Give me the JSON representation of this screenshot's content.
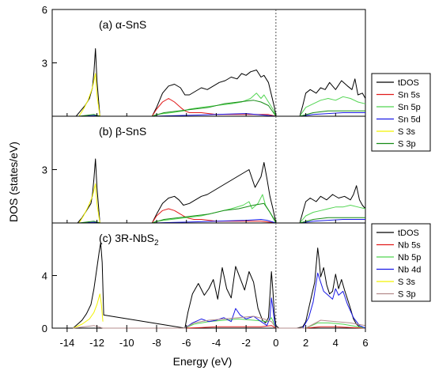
{
  "ylabel": "DOS (states/eV)",
  "xlabel": "Energy (eV)",
  "colors": {
    "tDOS": "#000000",
    "red": "#e11b1b",
    "lime": "#52d552",
    "blue": "#1a1ae6",
    "yellow": "#f2f200",
    "green": "#168c16",
    "brown": "#b48c8c",
    "fermi": "#555555"
  },
  "chart_data": [
    {
      "type": "line",
      "panel": "(a)",
      "title": "(a) α-SnS",
      "xlim": [
        -15,
        6
      ],
      "ylim": [
        0,
        6
      ],
      "yticks": [
        3,
        6
      ],
      "legend": {
        "placement": "right",
        "entries": [
          {
            "label": "tDOS",
            "color": "#000000"
          },
          {
            "label": "Sn 5s",
            "color": "#e11b1b"
          },
          {
            "label": "Sn 5p",
            "color": "#52d552"
          },
          {
            "label": "Sn 5d",
            "color": "#1a1ae6"
          },
          {
            "label": "S 3s",
            "color": "#f2f200"
          },
          {
            "label": "S 3p",
            "color": "#168c16"
          }
        ]
      },
      "series": [
        {
          "name": "tDOS",
          "color": "#000000",
          "x": [
            -13.4,
            -13.1,
            -12.8,
            -12.5,
            -12.3,
            -12.2,
            -12.1,
            -12.0,
            -11.85,
            -11.8,
            -8.3,
            -8.0,
            -7.6,
            -7.2,
            -6.8,
            -6.4,
            -6.1,
            -5.8,
            -5.4,
            -5.0,
            -4.6,
            -4.2,
            -3.8,
            -3.4,
            -3.0,
            -2.6,
            -2.3,
            -2.0,
            -1.7,
            -1.3,
            -1.0,
            -0.8,
            -0.5,
            -0.3,
            -0.1,
            0.0,
            1.6,
            1.8,
            2.0,
            2.3,
            2.7,
            3.0,
            3.3,
            3.6,
            4.0,
            4.4,
            4.8,
            5.1,
            5.3,
            5.5,
            5.8,
            6.0
          ],
          "y": [
            0,
            0.3,
            0.6,
            1.0,
            1.6,
            2.5,
            3.8,
            2.0,
            0.5,
            0,
            0,
            0.5,
            1.3,
            1.7,
            1.8,
            1.6,
            1.2,
            1.2,
            1.4,
            1.6,
            1.5,
            1.7,
            1.9,
            2.0,
            2.2,
            2.1,
            2.4,
            2.3,
            2.5,
            2.6,
            2.2,
            2.3,
            1.9,
            1.2,
            0.5,
            0,
            0,
            0.6,
            1.3,
            1.5,
            1.3,
            1.6,
            1.5,
            1.9,
            1.5,
            2.0,
            1.7,
            1.5,
            2.1,
            1.2,
            1.3,
            1.0
          ]
        },
        {
          "name": "Sn 5s",
          "color": "#e11b1b",
          "x": [
            -8.3,
            -8.0,
            -7.6,
            -7.2,
            -6.8,
            -6.4,
            -6.1,
            -5.8,
            -5.4,
            -5.0,
            -4.0,
            -3.0,
            -2.0,
            -1.0,
            -0.5,
            0.0
          ],
          "y": [
            0,
            0.4,
            0.8,
            1.0,
            0.8,
            0.5,
            0.3,
            0.2,
            0.2,
            0.2,
            0.1,
            0.1,
            0.1,
            0.1,
            0.1,
            0
          ]
        },
        {
          "name": "Sn 5p",
          "color": "#52d552",
          "x": [
            -8.3,
            -8.0,
            -7.0,
            -6.2,
            -5.8,
            -5.0,
            -4.0,
            -3.0,
            -2.3,
            -2.0,
            -1.7,
            -1.3,
            -1.0,
            -0.8,
            -0.5,
            -0.2,
            0.0,
            1.6,
            2.0,
            2.5,
            3.0,
            3.5,
            4.0,
            4.5,
            5.0,
            5.5,
            6.0
          ],
          "y": [
            0,
            0.1,
            0.2,
            0.3,
            0.4,
            0.5,
            0.6,
            0.7,
            0.8,
            0.9,
            1.0,
            1.3,
            1.0,
            1.2,
            0.8,
            0.4,
            0,
            0,
            0.5,
            0.7,
            0.9,
            1.0,
            0.9,
            1.1,
            1.0,
            0.8,
            0.7
          ]
        },
        {
          "name": "Sn 5d",
          "color": "#1a1ae6",
          "x": [
            -13.0,
            -12.0,
            -11.8,
            -8.3,
            -6.0,
            -4.0,
            -2.0,
            0.0,
            1.6,
            2.5,
            3.5,
            4.5,
            6.0
          ],
          "y": [
            0,
            0.05,
            0,
            0,
            0.05,
            0.1,
            0.15,
            0,
            0,
            0.1,
            0.15,
            0.2,
            0.2
          ]
        },
        {
          "name": "S 3s",
          "color": "#f2f200",
          "x": [
            -13.2,
            -12.9,
            -12.6,
            -12.3,
            -12.1,
            -12.0,
            -11.8
          ],
          "y": [
            0,
            0.4,
            0.9,
            1.6,
            2.4,
            1.2,
            0
          ]
        },
        {
          "name": "S 3p",
          "color": "#168c16",
          "x": [
            -13.2,
            -12.2,
            -11.8,
            -8.3,
            -7.5,
            -6.5,
            -5.5,
            -4.5,
            -3.5,
            -2.5,
            -1.5,
            -1.0,
            -0.5,
            0.0,
            1.6,
            2.5,
            3.5,
            4.5,
            6.0
          ],
          "y": [
            0,
            0.1,
            0,
            0,
            0.2,
            0.3,
            0.4,
            0.5,
            0.7,
            0.8,
            0.9,
            0.8,
            0.6,
            0,
            0,
            0.2,
            0.3,
            0.3,
            0.3
          ]
        }
      ]
    },
    {
      "type": "line",
      "panel": "(b)",
      "title": "(b) β-SnS",
      "xlim": [
        -15,
        6
      ],
      "ylim": [
        0,
        6
      ],
      "yticks": [
        3
      ],
      "series": [
        {
          "name": "tDOS",
          "color": "#000000",
          "x": [
            -13.3,
            -13.0,
            -12.7,
            -12.4,
            -12.3,
            -12.2,
            -12.1,
            -12.0,
            -11.85,
            -11.8,
            -8.3,
            -8.0,
            -7.6,
            -7.2,
            -6.8,
            -6.5,
            -6.2,
            -5.8,
            -5.4,
            -5.0,
            -4.6,
            -4.2,
            -3.8,
            -3.4,
            -3.0,
            -2.6,
            -2.2,
            -1.8,
            -1.4,
            -1.0,
            -0.8,
            -0.6,
            -0.4,
            -0.2,
            -0.1,
            0.0,
            1.6,
            1.8,
            2.0,
            2.3,
            2.7,
            3.0,
            3.4,
            3.8,
            4.2,
            4.6,
            5.0,
            5.2,
            5.4,
            5.6,
            5.8,
            6.0
          ],
          "y": [
            0,
            0.3,
            0.7,
            1.1,
            1.6,
            2.5,
            3.6,
            2.0,
            0.5,
            0,
            0,
            0.5,
            1.1,
            1.4,
            1.5,
            1.3,
            1.0,
            1.1,
            1.3,
            1.5,
            1.6,
            1.8,
            2.0,
            2.2,
            2.4,
            2.6,
            2.8,
            3.0,
            2.0,
            2.6,
            3.4,
            2.5,
            1.5,
            0.8,
            0.4,
            0,
            0,
            0.6,
            1.2,
            1.4,
            1.2,
            1.5,
            1.3,
            1.6,
            1.4,
            1.5,
            1.3,
            1.6,
            2.1,
            1.3,
            1.0,
            0.8
          ]
        },
        {
          "name": "Sn 5s",
          "color": "#e11b1b",
          "x": [
            -8.3,
            -8.0,
            -7.6,
            -7.2,
            -6.8,
            -6.4,
            -6.0,
            -5.5,
            -5.0,
            -4.0,
            -3.0,
            -2.0,
            -1.0,
            0.0
          ],
          "y": [
            0,
            0.4,
            0.7,
            0.8,
            0.7,
            0.5,
            0.3,
            0.2,
            0.2,
            0.1,
            0.1,
            0.1,
            0.1,
            0
          ]
        },
        {
          "name": "Sn 5p",
          "color": "#52d552",
          "x": [
            -8.3,
            -8.0,
            -7.0,
            -6.0,
            -5.0,
            -4.0,
            -3.0,
            -2.2,
            -1.8,
            -1.6,
            -1.2,
            -0.9,
            -0.7,
            -0.4,
            -0.1,
            0.0,
            1.6,
            2.0,
            2.5,
            3.0,
            3.5,
            4.0,
            4.5,
            5.0,
            5.5,
            6.0
          ],
          "y": [
            0,
            0.1,
            0.2,
            0.3,
            0.4,
            0.6,
            0.8,
            1.0,
            1.2,
            0.8,
            1.1,
            1.6,
            1.0,
            0.6,
            0.2,
            0,
            0,
            0.4,
            0.6,
            0.7,
            0.8,
            0.9,
            0.9,
            1.0,
            0.9,
            0.8
          ]
        },
        {
          "name": "Sn 5d",
          "color": "#1a1ae6",
          "x": [
            -13.0,
            -12.0,
            -11.8,
            -8.3,
            -6.0,
            -4.0,
            -2.0,
            -1.0,
            -0.6,
            0.0,
            1.6,
            2.5,
            3.5,
            4.5,
            6.0
          ],
          "y": [
            0,
            0.05,
            0,
            0,
            0.05,
            0.1,
            0.15,
            0.2,
            0.15,
            0,
            0,
            0.1,
            0.15,
            0.2,
            0.2
          ]
        },
        {
          "name": "S 3s",
          "color": "#f2f200",
          "x": [
            -13.2,
            -12.9,
            -12.6,
            -12.3,
            -12.1,
            -12.0,
            -11.8
          ],
          "y": [
            0,
            0.4,
            0.9,
            1.5,
            2.2,
            1.1,
            0
          ]
        },
        {
          "name": "S 3p",
          "color": "#168c16",
          "x": [
            -13.2,
            -12.2,
            -11.8,
            -8.3,
            -7.5,
            -6.5,
            -5.5,
            -4.5,
            -3.5,
            -2.5,
            -1.5,
            -0.8,
            -0.4,
            0.0,
            1.6,
            2.5,
            3.5,
            4.5,
            6.0
          ],
          "y": [
            0,
            0.1,
            0,
            0,
            0.2,
            0.3,
            0.4,
            0.5,
            0.7,
            0.8,
            1.0,
            1.1,
            0.6,
            0,
            0,
            0.2,
            0.3,
            0.3,
            0.3
          ]
        }
      ]
    },
    {
      "type": "line",
      "panel": "(c)",
      "title": "(c) 3R-NbS",
      "title_sub": "2",
      "xlim": [
        -15,
        6
      ],
      "ylim": [
        0,
        8
      ],
      "yticks": [
        0,
        4
      ],
      "legend": {
        "placement": "right",
        "entries": [
          {
            "label": "tDOS",
            "color": "#000000"
          },
          {
            "label": "Nb 5s",
            "color": "#e11b1b"
          },
          {
            "label": "Nb 5p",
            "color": "#52d552"
          },
          {
            "label": "Nb 4d",
            "color": "#1a1ae6"
          },
          {
            "label": "S 3s",
            "color": "#f2f200"
          },
          {
            "label": "S 3p",
            "color": "#b48c8c"
          }
        ]
      },
      "series": [
        {
          "name": "tDOS",
          "color": "#000000",
          "x": [
            -13.6,
            -13.3,
            -13.0,
            -12.7,
            -12.4,
            -12.2,
            -12.0,
            -11.85,
            -11.75,
            -11.65,
            -11.55,
            -6.1,
            -5.9,
            -5.6,
            -5.2,
            -4.8,
            -4.5,
            -4.2,
            -3.9,
            -3.6,
            -3.3,
            -3.0,
            -2.7,
            -2.4,
            -2.1,
            -1.8,
            -1.5,
            -1.2,
            -0.9,
            -0.7,
            -0.5,
            -0.4,
            -0.3,
            -0.2,
            -0.1,
            0.0,
            0.2,
            0.4,
            0.6,
            1.0,
            1.4,
            1.8,
            2.0,
            2.2,
            2.4,
            2.6,
            2.8,
            2.9,
            3.0,
            3.2,
            3.4,
            3.6,
            3.8,
            4.0,
            4.2,
            4.4,
            4.6,
            4.8,
            5.0,
            5.2,
            5.4,
            5.6,
            5.8,
            6.0
          ],
          "y": [
            0,
            0.3,
            0.6,
            1.1,
            1.8,
            3.0,
            4.6,
            5.8,
            6.5,
            5.0,
            1.0,
            0,
            1.2,
            2.6,
            3.4,
            2.5,
            3.0,
            3.7,
            2.2,
            4.6,
            3.0,
            2.3,
            4.7,
            3.8,
            2.9,
            4.3,
            3.5,
            1.5,
            0.6,
            0.4,
            0.8,
            2.5,
            4.3,
            2.8,
            1.0,
            0.2,
            0,
            0,
            0,
            0,
            0,
            0.1,
            0.5,
            1.5,
            2.5,
            3.5,
            6.1,
            5.2,
            3.9,
            4.6,
            3.3,
            2.6,
            2.8,
            4.1,
            3.0,
            3.7,
            2.9,
            2.2,
            1.5,
            0.7,
            0.3,
            0.1,
            0.05,
            0
          ]
        },
        {
          "name": "Nb 5s",
          "color": "#e11b1b",
          "x": [
            -6.1,
            -5.0,
            -4.0,
            -3.0,
            -2.0,
            -1.0,
            -0.3,
            0.0,
            2.0,
            3.0,
            4.0,
            5.0,
            6.0
          ],
          "y": [
            0,
            0.05,
            0.1,
            0.1,
            0.1,
            0.1,
            0.2,
            0,
            0,
            0.1,
            0.1,
            0.05,
            0
          ]
        },
        {
          "name": "Nb 5p",
          "color": "#52d552",
          "x": [
            -6.1,
            -5.5,
            -4.5,
            -3.5,
            -2.5,
            -1.5,
            -0.5,
            -0.3,
            0.0,
            2.0,
            2.8,
            3.5,
            4.5,
            5.5,
            6.0
          ],
          "y": [
            0,
            0.3,
            0.5,
            0.6,
            0.7,
            0.6,
            0.5,
            0.8,
            0,
            0,
            0.4,
            0.4,
            0.3,
            0.1,
            0
          ]
        },
        {
          "name": "Nb 4d",
          "color": "#1a1ae6",
          "x": [
            -6.1,
            -5.6,
            -5.0,
            -4.5,
            -4.0,
            -3.5,
            -3.0,
            -2.7,
            -2.4,
            -2.0,
            -1.5,
            -1.0,
            -0.6,
            -0.4,
            -0.3,
            -0.2,
            -0.1,
            0.0,
            1.8,
            2.2,
            2.5,
            2.8,
            3.0,
            3.2,
            3.5,
            3.8,
            4.0,
            4.2,
            4.5,
            4.8,
            5.2,
            5.6,
            6.0
          ],
          "y": [
            0,
            0.4,
            0.7,
            0.5,
            0.6,
            0.8,
            0.5,
            1.5,
            1.0,
            0.7,
            0.9,
            0.5,
            0.2,
            0.8,
            2.3,
            1.5,
            0.5,
            0,
            0,
            0.8,
            2.0,
            4.2,
            3.5,
            2.8,
            2.5,
            2.2,
            3.0,
            2.5,
            2.8,
            1.8,
            0.8,
            0.2,
            0
          ]
        },
        {
          "name": "S 3s",
          "color": "#f2f200",
          "x": [
            -13.6,
            -13.0,
            -12.5,
            -12.2,
            -12.0,
            -11.8,
            -11.7,
            -11.6
          ],
          "y": [
            0,
            0.3,
            0.7,
            1.2,
            1.8,
            2.6,
            1.8,
            0.5
          ]
        },
        {
          "name": "S 3p",
          "color": "#b48c8c",
          "x": [
            -13.6,
            -12.2,
            -11.6,
            -6.1,
            -5.5,
            -4.5,
            -3.5,
            -2.5,
            -1.5,
            -0.8,
            -0.3,
            0.0,
            2.0,
            3.0,
            4.0,
            5.0,
            6.0
          ],
          "y": [
            0,
            0.2,
            0,
            0,
            0.4,
            0.6,
            0.7,
            0.8,
            0.9,
            0.7,
            0.5,
            0,
            0,
            0.6,
            0.5,
            0.4,
            0.2
          ]
        }
      ]
    }
  ],
  "xticks": [
    -14,
    -12,
    -10,
    -8,
    -6,
    -4,
    -2,
    0,
    2,
    4,
    6
  ]
}
